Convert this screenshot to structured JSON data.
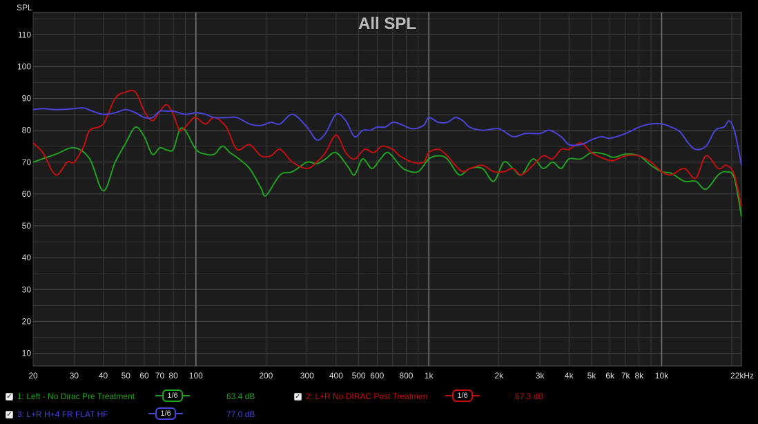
{
  "colors": {
    "green": "#22a022",
    "red": "#c01010",
    "blue": "#4a44d6",
    "grid": "#444444",
    "major_grid": "#7a7a7a",
    "frame_bg": "#1c1c1c"
  },
  "chart_data": {
    "type": "line",
    "title": "All SPL",
    "ylabel": "SPL",
    "xscale": "log",
    "xlim": [
      20,
      22000
    ],
    "ylim": [
      6,
      117
    ],
    "y_ticks": [
      "10",
      "20",
      "30",
      "40",
      "50",
      "60",
      "70",
      "80",
      "90",
      "100",
      "110"
    ],
    "x_ticks": [
      {
        "v": 20,
        "l": "20"
      },
      {
        "v": 30,
        "l": "30"
      },
      {
        "v": 40,
        "l": "40"
      },
      {
        "v": 50,
        "l": "50"
      },
      {
        "v": 60,
        "l": "60"
      },
      {
        "v": 70,
        "l": "70"
      },
      {
        "v": 80,
        "l": "80"
      },
      {
        "v": 100,
        "l": "100"
      },
      {
        "v": 200,
        "l": "200"
      },
      {
        "v": 300,
        "l": "300"
      },
      {
        "v": 400,
        "l": "400"
      },
      {
        "v": 500,
        "l": "500"
      },
      {
        "v": 600,
        "l": "600"
      },
      {
        "v": 800,
        "l": "800"
      },
      {
        "v": 1000,
        "l": "1k"
      },
      {
        "v": 2000,
        "l": "2k"
      },
      {
        "v": 3000,
        "l": "3k"
      },
      {
        "v": 4000,
        "l": "4k"
      },
      {
        "v": 5000,
        "l": "5k"
      },
      {
        "v": 6000,
        "l": "6k"
      },
      {
        "v": 7000,
        "l": "7k"
      },
      {
        "v": 8000,
        "l": "8k"
      },
      {
        "v": 10000,
        "l": "10k"
      },
      {
        "v": 22000,
        "l": "22kHz"
      }
    ],
    "series": [
      {
        "name": "1: Left - No Dirac Pre Treatment",
        "color": "#22a022",
        "smoothing": "1/6",
        "level": "63.4 dB",
        "points": [
          [
            20,
            70
          ],
          [
            25,
            72.5
          ],
          [
            30,
            74.5
          ],
          [
            35,
            71
          ],
          [
            40,
            61
          ],
          [
            45,
            70
          ],
          [
            50,
            76
          ],
          [
            55,
            81
          ],
          [
            60,
            78
          ],
          [
            65,
            72.5
          ],
          [
            70,
            74.5
          ],
          [
            75,
            73.8
          ],
          [
            80,
            74
          ],
          [
            85,
            80
          ],
          [
            90,
            80
          ],
          [
            100,
            74
          ],
          [
            110,
            72.5
          ],
          [
            120,
            72.5
          ],
          [
            130,
            75
          ],
          [
            140,
            73
          ],
          [
            150,
            71.5
          ],
          [
            170,
            68
          ],
          [
            190,
            62
          ],
          [
            200,
            59.5
          ],
          [
            230,
            66
          ],
          [
            260,
            67
          ],
          [
            300,
            70
          ],
          [
            330,
            69.5
          ],
          [
            360,
            71
          ],
          [
            400,
            73
          ],
          [
            450,
            68.5
          ],
          [
            480,
            66
          ],
          [
            520,
            71
          ],
          [
            570,
            68
          ],
          [
            620,
            71
          ],
          [
            670,
            73
          ],
          [
            750,
            69
          ],
          [
            800,
            67.5
          ],
          [
            900,
            67
          ],
          [
            1000,
            71
          ],
          [
            1100,
            72
          ],
          [
            1200,
            71
          ],
          [
            1350,
            66
          ],
          [
            1500,
            68
          ],
          [
            1700,
            68
          ],
          [
            1900,
            64
          ],
          [
            2100,
            70
          ],
          [
            2300,
            68
          ],
          [
            2500,
            66
          ],
          [
            2800,
            71
          ],
          [
            3100,
            68
          ],
          [
            3400,
            70
          ],
          [
            3700,
            68
          ],
          [
            4000,
            71
          ],
          [
            4500,
            71
          ],
          [
            5000,
            73
          ],
          [
            5700,
            72.5
          ],
          [
            6200,
            71.5
          ],
          [
            7000,
            72.5
          ],
          [
            8000,
            72
          ],
          [
            9000,
            69
          ],
          [
            10000,
            67
          ],
          [
            11000,
            66.5
          ],
          [
            12500,
            64
          ],
          [
            14000,
            64
          ],
          [
            15500,
            61.5
          ],
          [
            17500,
            66
          ],
          [
            19000,
            67
          ],
          [
            20500,
            65
          ],
          [
            22000,
            53
          ]
        ]
      },
      {
        "name": "2: L+R No DIRAC Post Treatmen",
        "color": "#c01010",
        "smoothing": "1/6",
        "level": "67.3 dB",
        "points": [
          [
            20,
            76
          ],
          [
            22,
            73
          ],
          [
            25,
            66
          ],
          [
            28,
            70
          ],
          [
            30,
            70
          ],
          [
            33,
            75
          ],
          [
            35,
            80
          ],
          [
            40,
            82
          ],
          [
            45,
            90
          ],
          [
            50,
            92
          ],
          [
            55,
            92
          ],
          [
            60,
            86
          ],
          [
            65,
            83
          ],
          [
            70,
            86
          ],
          [
            75,
            88
          ],
          [
            80,
            85
          ],
          [
            85,
            80
          ],
          [
            90,
            81
          ],
          [
            95,
            83
          ],
          [
            100,
            84
          ],
          [
            110,
            82
          ],
          [
            120,
            84
          ],
          [
            135,
            81
          ],
          [
            150,
            74
          ],
          [
            170,
            75.5
          ],
          [
            190,
            72
          ],
          [
            210,
            72
          ],
          [
            230,
            74
          ],
          [
            260,
            70
          ],
          [
            300,
            68
          ],
          [
            330,
            70
          ],
          [
            360,
            73
          ],
          [
            400,
            78.5
          ],
          [
            440,
            73
          ],
          [
            480,
            71
          ],
          [
            530,
            74
          ],
          [
            580,
            73
          ],
          [
            630,
            75
          ],
          [
            700,
            74
          ],
          [
            750,
            72
          ],
          [
            850,
            70
          ],
          [
            950,
            70
          ],
          [
            1000,
            73
          ],
          [
            1100,
            74
          ],
          [
            1200,
            72
          ],
          [
            1300,
            69
          ],
          [
            1400,
            67
          ],
          [
            1500,
            68
          ],
          [
            1700,
            69
          ],
          [
            1900,
            67
          ],
          [
            2100,
            67
          ],
          [
            2300,
            68
          ],
          [
            2500,
            66
          ],
          [
            2800,
            69
          ],
          [
            3100,
            72
          ],
          [
            3400,
            71
          ],
          [
            3700,
            74
          ],
          [
            4000,
            74
          ],
          [
            4500,
            76
          ],
          [
            5000,
            73
          ],
          [
            5700,
            71
          ],
          [
            6200,
            70.5
          ],
          [
            7000,
            72
          ],
          [
            8000,
            72
          ],
          [
            9000,
            70
          ],
          [
            10000,
            67
          ],
          [
            11000,
            66
          ],
          [
            12500,
            68
          ],
          [
            14000,
            65
          ],
          [
            15500,
            72
          ],
          [
            17500,
            68
          ],
          [
            19000,
            69
          ],
          [
            20500,
            66
          ],
          [
            22000,
            56
          ]
        ]
      },
      {
        "name": "3: L+R H+4 FR FLAT HF",
        "color": "#4a44d6",
        "smoothing": "1/6",
        "level": "77.0 dB",
        "points": [
          [
            20,
            86.5
          ],
          [
            22,
            86.8
          ],
          [
            25,
            86.5
          ],
          [
            30,
            86.8
          ],
          [
            33,
            87
          ],
          [
            36,
            86
          ],
          [
            40,
            85
          ],
          [
            45,
            85.5
          ],
          [
            50,
            86.5
          ],
          [
            55,
            85.5
          ],
          [
            60,
            84
          ],
          [
            65,
            84
          ],
          [
            70,
            86
          ],
          [
            75,
            86
          ],
          [
            80,
            86
          ],
          [
            90,
            85
          ],
          [
            100,
            85.5
          ],
          [
            110,
            85
          ],
          [
            120,
            84
          ],
          [
            135,
            84
          ],
          [
            150,
            84
          ],
          [
            170,
            82
          ],
          [
            190,
            81.5
          ],
          [
            210,
            82.5
          ],
          [
            230,
            82
          ],
          [
            260,
            85
          ],
          [
            300,
            81
          ],
          [
            330,
            77
          ],
          [
            360,
            79
          ],
          [
            400,
            85
          ],
          [
            440,
            83
          ],
          [
            480,
            78
          ],
          [
            520,
            80
          ],
          [
            560,
            80
          ],
          [
            600,
            81
          ],
          [
            650,
            81
          ],
          [
            700,
            82.5
          ],
          [
            750,
            82
          ],
          [
            850,
            80.5
          ],
          [
            950,
            81.5
          ],
          [
            1000,
            84
          ],
          [
            1100,
            82.5
          ],
          [
            1200,
            82.5
          ],
          [
            1300,
            84
          ],
          [
            1400,
            83
          ],
          [
            1500,
            81
          ],
          [
            1700,
            80
          ],
          [
            2000,
            80.5
          ],
          [
            2300,
            78
          ],
          [
            2600,
            79
          ],
          [
            3000,
            79
          ],
          [
            3300,
            80
          ],
          [
            3700,
            78
          ],
          [
            4000,
            75.5
          ],
          [
            4500,
            75.5
          ],
          [
            5000,
            77
          ],
          [
            5500,
            78
          ],
          [
            6000,
            77.5
          ],
          [
            7000,
            79
          ],
          [
            8000,
            81
          ],
          [
            9000,
            82
          ],
          [
            10000,
            82
          ],
          [
            11000,
            81
          ],
          [
            12000,
            79.5
          ],
          [
            13000,
            76
          ],
          [
            14000,
            74
          ],
          [
            15500,
            75
          ],
          [
            17000,
            80
          ],
          [
            18500,
            81
          ],
          [
            19500,
            83
          ],
          [
            20500,
            80
          ],
          [
            21500,
            73
          ],
          [
            22000,
            69
          ]
        ]
      }
    ]
  }
}
